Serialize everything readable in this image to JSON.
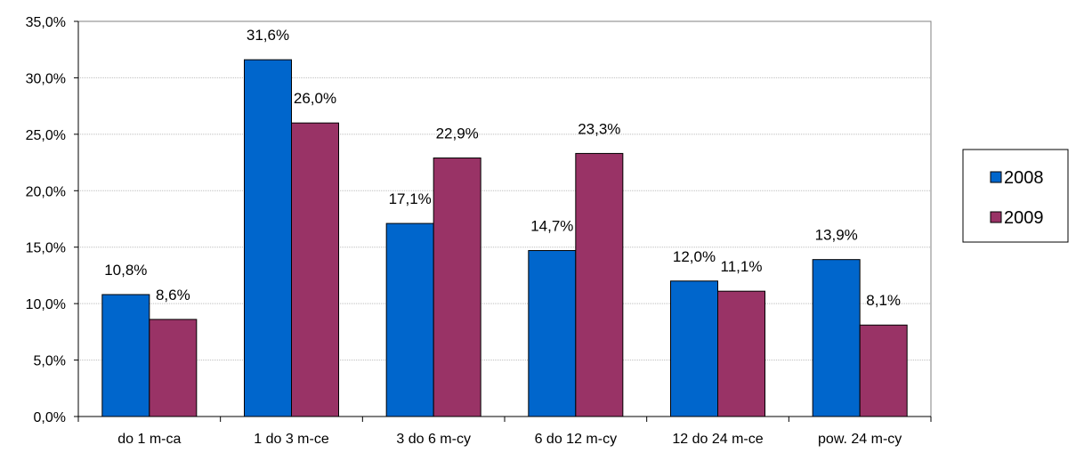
{
  "chart_data": {
    "type": "bar",
    "categories": [
      "do 1 m-ca",
      "1 do 3 m-ce",
      "3 do 6 m-cy",
      "6 do 12 m-cy",
      "12 do 24 m-ce",
      "pow. 24 m-cy"
    ],
    "series": [
      {
        "name": "2008",
        "values": [
          10.8,
          31.6,
          17.1,
          14.7,
          12.0,
          13.9
        ],
        "labels": [
          "10,8%",
          "31,6%",
          "17,1%",
          "14,7%",
          "12,0%",
          "13,9%"
        ],
        "color": "#0066CC"
      },
      {
        "name": "2009",
        "values": [
          8.6,
          26.0,
          22.9,
          23.3,
          11.1,
          8.1
        ],
        "labels": [
          "8,6%",
          "26,0%",
          "22,9%",
          "23,3%",
          "11,1%",
          "8,1%"
        ],
        "color": "#993366"
      }
    ],
    "ylim": [
      0,
      35
    ],
    "yticks": [
      0,
      5,
      10,
      15,
      20,
      25,
      30,
      35
    ],
    "ytick_labels": [
      "0,0%",
      "5,0%",
      "10,0%",
      "15,0%",
      "20,0%",
      "25,0%",
      "30,0%",
      "35,0%"
    ],
    "grid": true,
    "legend_position": "right"
  }
}
